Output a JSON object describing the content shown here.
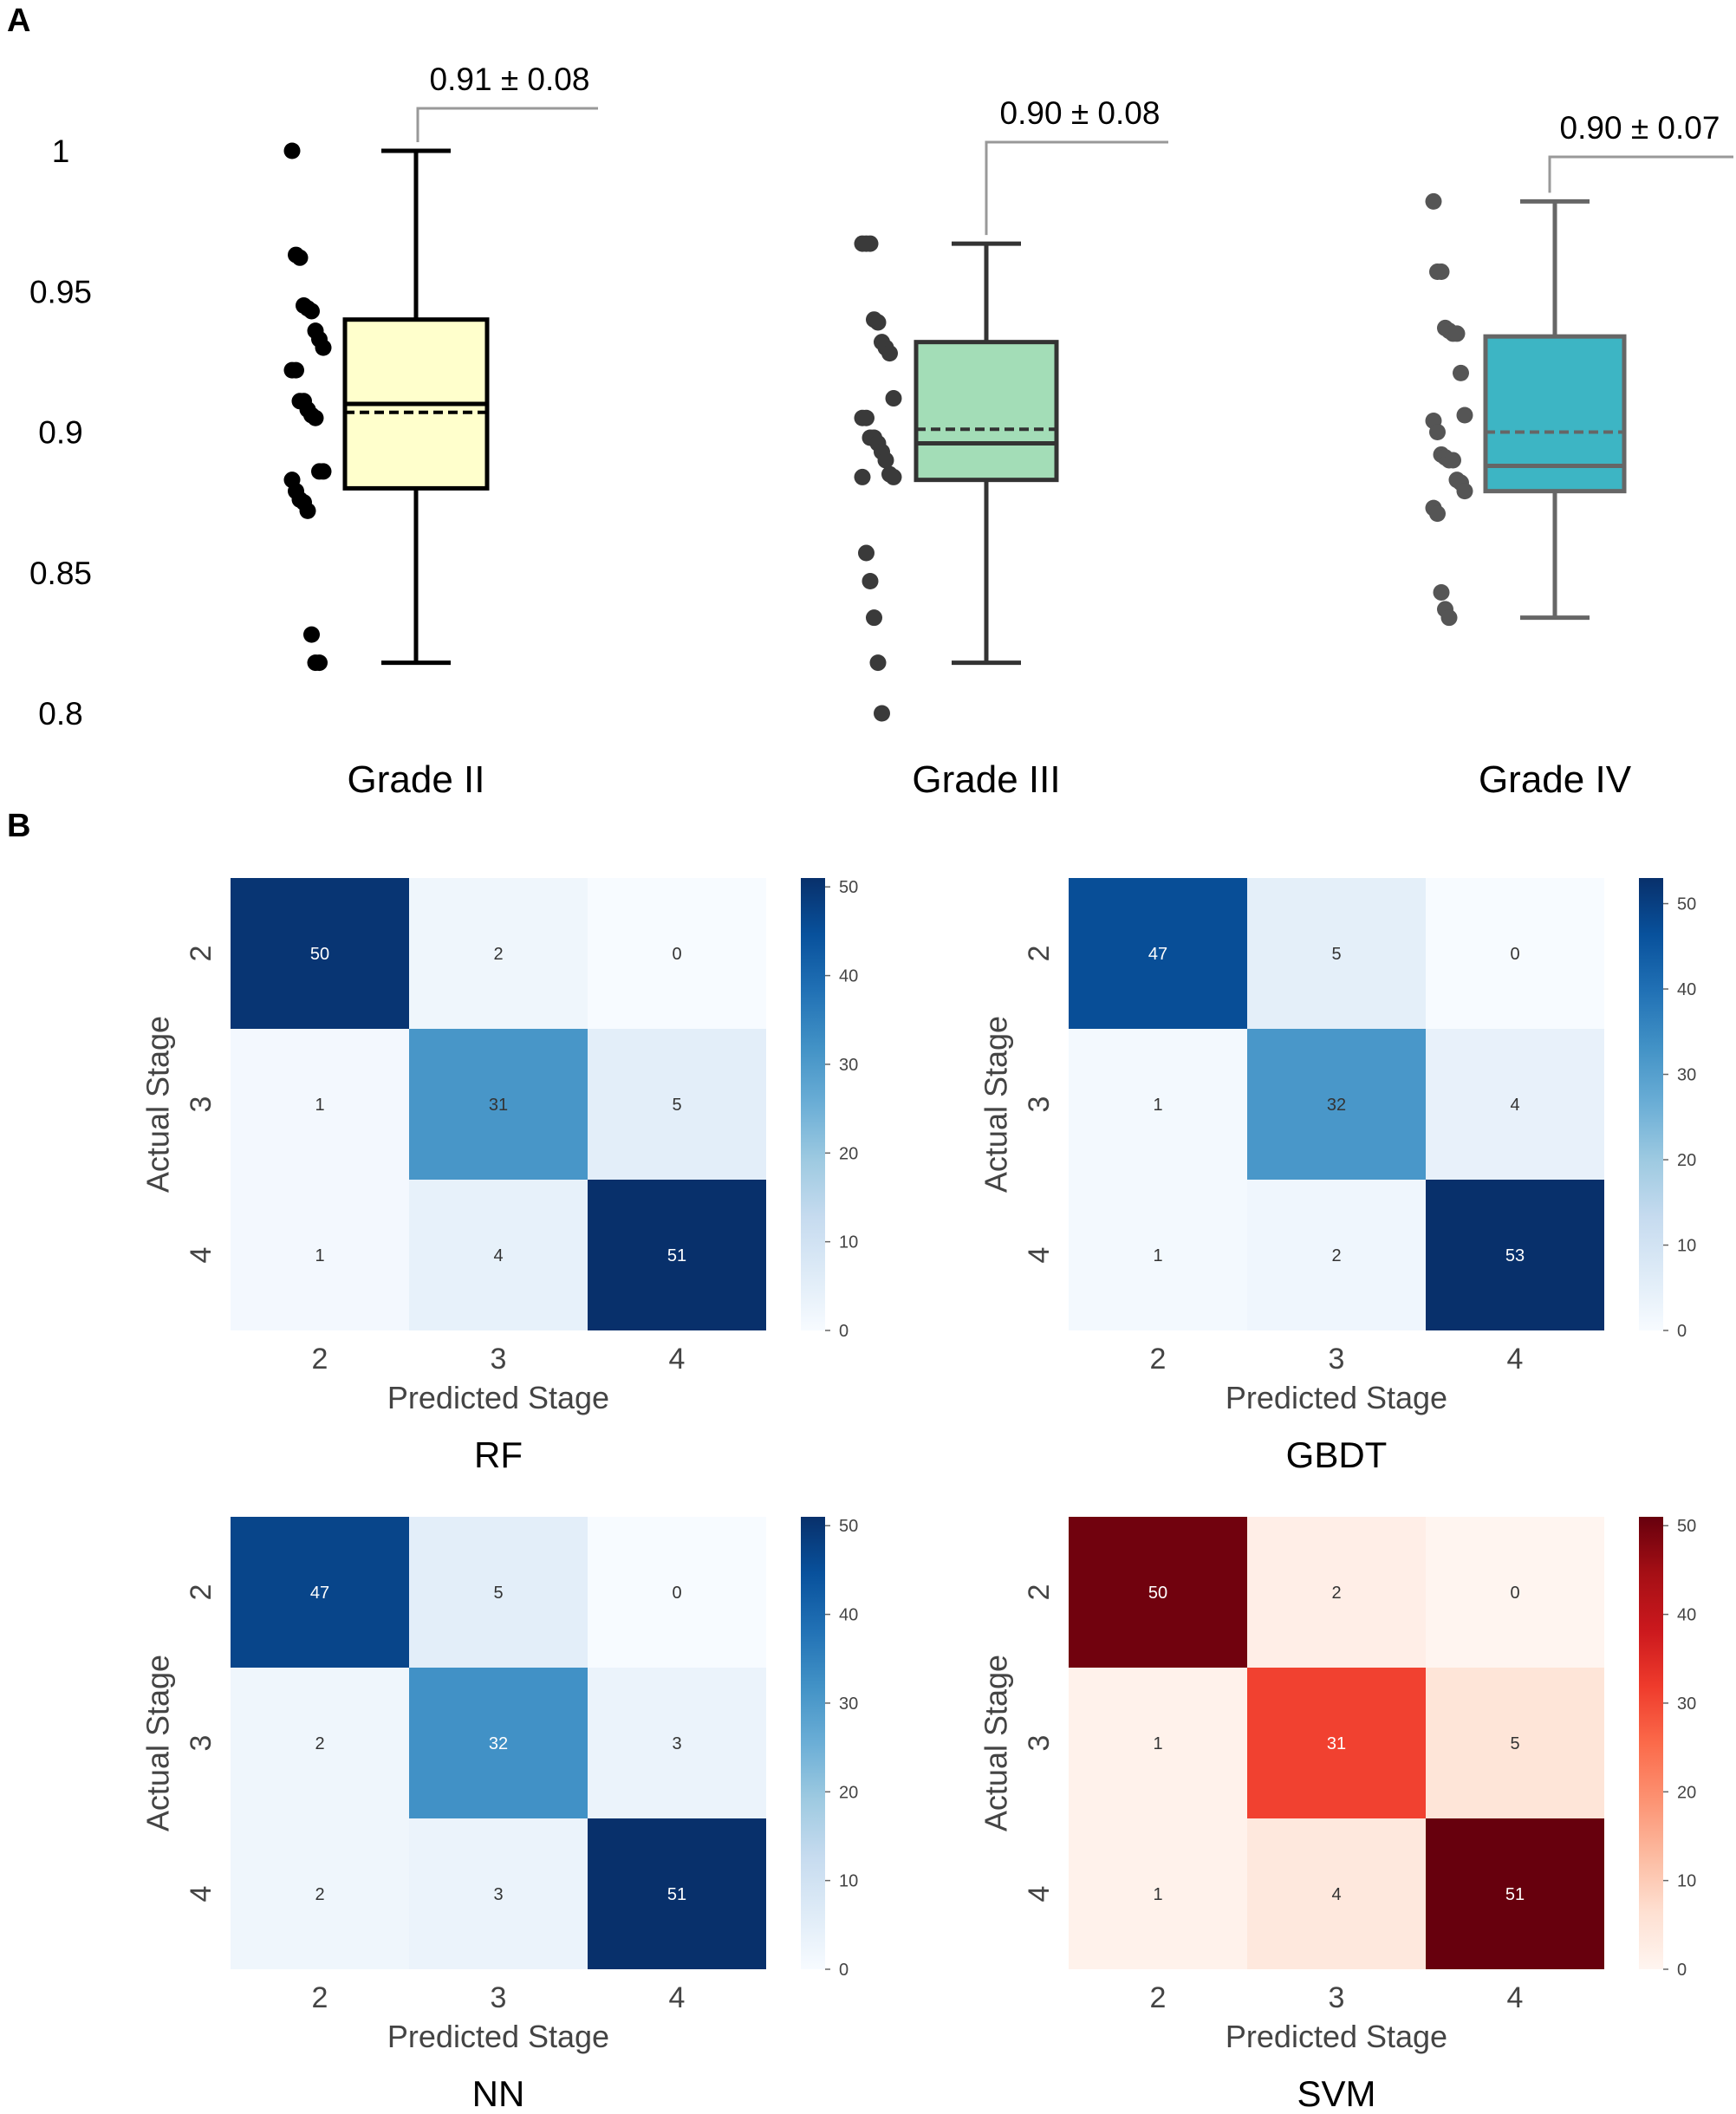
{
  "panels": {
    "a": "A",
    "b": "B"
  },
  "chart_data": [
    {
      "type": "box",
      "title": "",
      "xlabel": "",
      "ylabel": "",
      "ylim": [
        0.8,
        1.0
      ],
      "yticks": [
        "0.8",
        "0.85",
        "0.9",
        "0.95",
        "1"
      ],
      "categories": [
        "Grade II",
        "Grade III",
        "Grade IV"
      ],
      "annotations": [
        "0.91 ± 0.08",
        "0.90 ± 0.08",
        "0.90 ± 0.07"
      ],
      "boxes": [
        {
          "name": "Grade II",
          "color": "#ffffcc",
          "edge": "#000000",
          "whisker_low": 0.818,
          "q1": 0.88,
          "median": 0.91,
          "mean": 0.907,
          "q3": 0.94,
          "whisker_high": 1.0,
          "points": [
            1.0,
            0.963,
            0.962,
            0.945,
            0.944,
            0.943,
            0.936,
            0.933,
            0.93,
            0.922,
            0.922,
            0.911,
            0.911,
            0.908,
            0.906,
            0.905,
            0.886,
            0.886,
            0.883,
            0.879,
            0.876,
            0.875,
            0.872,
            0.828,
            0.818,
            0.818
          ]
        },
        {
          "name": "Grade III",
          "color": "#a3ddb7",
          "edge": "#333333",
          "whisker_low": 0.818,
          "q1": 0.883,
          "median": 0.896,
          "mean": 0.901,
          "q3": 0.932,
          "whisker_high": 0.967,
          "points": [
            0.967,
            0.967,
            0.967,
            0.94,
            0.939,
            0.932,
            0.93,
            0.928,
            0.912,
            0.905,
            0.905,
            0.898,
            0.898,
            0.896,
            0.893,
            0.89,
            0.885,
            0.884,
            0.884,
            0.857,
            0.847,
            0.834,
            0.818,
            0.8
          ]
        },
        {
          "name": "Grade IV",
          "color": "#3db5c4",
          "edge": "#666666",
          "whisker_low": 0.834,
          "q1": 0.879,
          "median": 0.888,
          "mean": 0.9,
          "q3": 0.934,
          "whisker_high": 0.982,
          "points": [
            0.982,
            0.957,
            0.957,
            0.937,
            0.936,
            0.935,
            0.935,
            0.921,
            0.906,
            0.904,
            0.9,
            0.892,
            0.891,
            0.89,
            0.89,
            0.883,
            0.882,
            0.879,
            0.873,
            0.871,
            0.843,
            0.837,
            0.834
          ]
        }
      ]
    },
    {
      "type": "heatmap",
      "title": "RF",
      "cmap": "Blues",
      "xlabel": "Predicted Stage",
      "ylabel": "Actual Stage",
      "x_ticks": [
        "2",
        "3",
        "4"
      ],
      "y_ticks": [
        "2",
        "3",
        "4"
      ],
      "matrix": [
        [
          50,
          2,
          0
        ],
        [
          1,
          31,
          5
        ],
        [
          1,
          4,
          51
        ]
      ],
      "colorbar_range": [
        0,
        51
      ],
      "colorbar_ticks": [
        0,
        10,
        20,
        30,
        40,
        50
      ]
    },
    {
      "type": "heatmap",
      "title": "GBDT",
      "cmap": "Blues",
      "xlabel": "Predicted Stage",
      "ylabel": "Actual Stage",
      "x_ticks": [
        "2",
        "3",
        "4"
      ],
      "y_ticks": [
        "2",
        "3",
        "4"
      ],
      "matrix": [
        [
          47,
          5,
          0
        ],
        [
          1,
          32,
          4
        ],
        [
          1,
          2,
          53
        ]
      ],
      "colorbar_range": [
        0,
        53
      ],
      "colorbar_ticks": [
        0,
        10,
        20,
        30,
        40,
        50
      ]
    },
    {
      "type": "heatmap",
      "title": "NN",
      "cmap": "Blues",
      "xlabel": "Predicted Stage",
      "ylabel": "Actual Stage",
      "x_ticks": [
        "2",
        "3",
        "4"
      ],
      "y_ticks": [
        "2",
        "3",
        "4"
      ],
      "matrix": [
        [
          47,
          5,
          0
        ],
        [
          2,
          32,
          3
        ],
        [
          2,
          3,
          51
        ]
      ],
      "colorbar_range": [
        0,
        51
      ],
      "colorbar_ticks": [
        0,
        10,
        20,
        30,
        40,
        50
      ]
    },
    {
      "type": "heatmap",
      "title": "SVM",
      "cmap": "Reds",
      "xlabel": "Predicted Stage",
      "ylabel": "Actual Stage",
      "x_ticks": [
        "2",
        "3",
        "4"
      ],
      "y_ticks": [
        "2",
        "3",
        "4"
      ],
      "matrix": [
        [
          50,
          2,
          0
        ],
        [
          1,
          31,
          5
        ],
        [
          1,
          4,
          51
        ]
      ],
      "colorbar_range": [
        0,
        51
      ],
      "colorbar_ticks": [
        0,
        10,
        20,
        30,
        40,
        50
      ]
    }
  ]
}
